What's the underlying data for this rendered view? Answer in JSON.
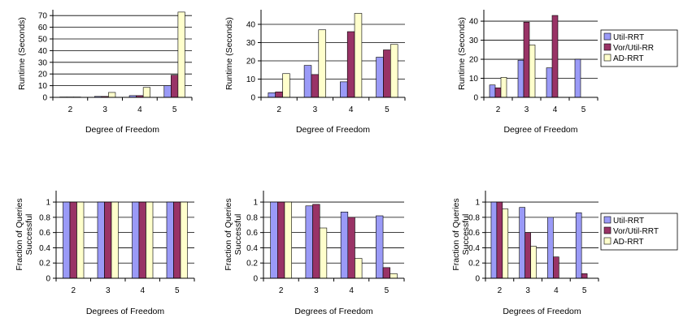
{
  "colors": {
    "series": [
      "#9a9af7",
      "#993366",
      "#ffffcc"
    ],
    "axis": "#000000",
    "bar_stroke": "#000000"
  },
  "chart_data": [
    {
      "type": "bar",
      "categories": [
        "2",
        "3",
        "4",
        "5"
      ],
      "ylim": [
        0,
        75
      ],
      "yticks": [
        0,
        10,
        20,
        30,
        40,
        50,
        60,
        70
      ],
      "xlabel": "Degree of Freedom",
      "ylabel": "Runtime (Seconds)",
      "grid": true,
      "legend": null,
      "series": [
        {
          "name": "Util-RRT",
          "values": [
            0.3,
            0.8,
            1.5,
            10
          ]
        },
        {
          "name": "Vor/Util-RRT",
          "values": [
            0.3,
            0.8,
            1.5,
            19
          ]
        },
        {
          "name": "AD-RRT",
          "values": [
            0.3,
            4.2,
            8.5,
            73
          ]
        }
      ]
    },
    {
      "type": "bar",
      "categories": [
        "2",
        "3",
        "4",
        "5"
      ],
      "ylim": [
        0,
        48
      ],
      "yticks": [
        0,
        10,
        20,
        30,
        40
      ],
      "xlabel": "Degree of Freedom",
      "ylabel": "Runtime (Seconds)",
      "grid": true,
      "legend": null,
      "series": [
        {
          "name": "Util-RRT",
          "values": [
            2.5,
            17.5,
            8.5,
            22
          ]
        },
        {
          "name": "Vor/Util-RRT",
          "values": [
            3,
            12.5,
            36,
            26
          ]
        },
        {
          "name": "AD-RRT",
          "values": [
            13,
            37,
            46,
            29
          ]
        }
      ]
    },
    {
      "type": "bar",
      "categories": [
        "2",
        "3",
        "4",
        "5"
      ],
      "ylim": [
        0,
        46
      ],
      "yticks": [
        0,
        10,
        20,
        30,
        40
      ],
      "xlabel": "Degree of Freedom",
      "ylabel": "Runtime (Seconds)",
      "grid": true,
      "legend": "right",
      "series": [
        {
          "name": "Util-RRT",
          "values": [
            6.5,
            19.5,
            15.5,
            20
          ]
        },
        {
          "name": "Vor/Util-RR",
          "values": [
            5,
            39.5,
            43,
            0
          ]
        },
        {
          "name": "AD-RRT",
          "values": [
            10.5,
            27.5,
            0,
            0
          ]
        }
      ]
    },
    {
      "type": "bar",
      "categories": [
        "2",
        "3",
        "4",
        "5"
      ],
      "ylim": [
        0,
        1.15
      ],
      "yticks": [
        0,
        0.2,
        0.4,
        0.6,
        0.8,
        1
      ],
      "xlabel": "Degrees of Freedom",
      "ylabel": "Fraction of Queries Successful",
      "grid": true,
      "legend": null,
      "series": [
        {
          "name": "Util-RRT",
          "values": [
            1,
            1,
            1,
            1
          ]
        },
        {
          "name": "Vor/Util-RRT",
          "values": [
            1,
            1,
            1,
            1
          ]
        },
        {
          "name": "AD-RRT",
          "values": [
            1,
            1,
            1,
            1
          ]
        }
      ]
    },
    {
      "type": "bar",
      "categories": [
        "2",
        "3",
        "4",
        "5"
      ],
      "ylim": [
        0,
        1.15
      ],
      "yticks": [
        0,
        0.2,
        0.4,
        0.6,
        0.8,
        1
      ],
      "xlabel": "Degrees of Freedom",
      "ylabel": "Fraction of Queries Successful",
      "grid": true,
      "legend": null,
      "series": [
        {
          "name": "Util-RRT",
          "values": [
            1,
            0.95,
            0.87,
            0.82
          ]
        },
        {
          "name": "Vor/Util-RRT",
          "values": [
            1,
            0.97,
            0.8,
            0.14
          ]
        },
        {
          "name": "AD-RRT",
          "values": [
            1,
            0.66,
            0.26,
            0.06
          ]
        }
      ]
    },
    {
      "type": "bar",
      "categories": [
        "2",
        "3",
        "4",
        "5"
      ],
      "ylim": [
        0,
        1.15
      ],
      "yticks": [
        0,
        0.2,
        0.4,
        0.6,
        0.8,
        1
      ],
      "xlabel": "Degrees of Freedom",
      "ylabel": "Fraction of Queries Successful",
      "grid": true,
      "legend": "right",
      "series": [
        {
          "name": "Util-RRT",
          "values": [
            1,
            0.93,
            0.8,
            0.86
          ]
        },
        {
          "name": "Vor/Util-RRT",
          "values": [
            1,
            0.6,
            0.28,
            0.06
          ]
        },
        {
          "name": "AD-RRT",
          "values": [
            0.91,
            0.42,
            0,
            0
          ]
        }
      ]
    }
  ]
}
